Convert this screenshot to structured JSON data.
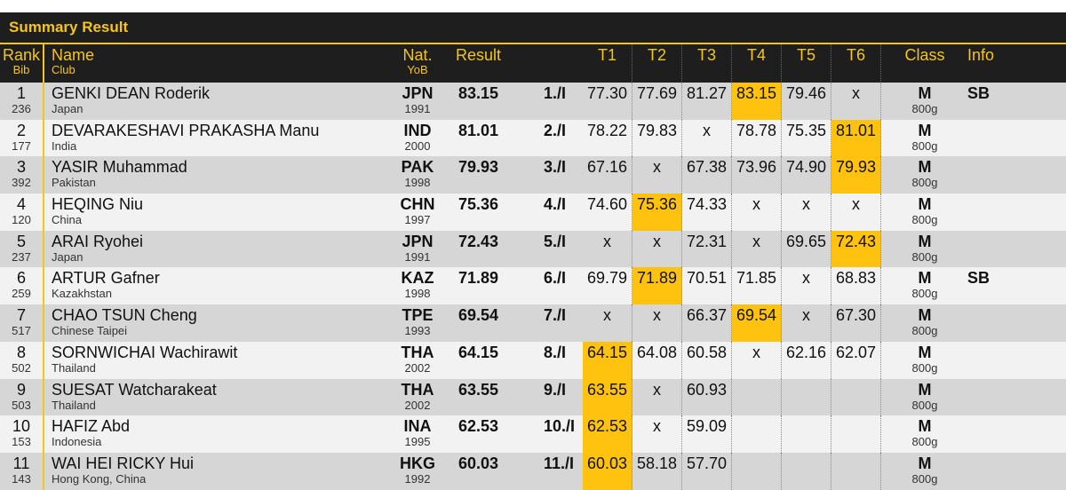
{
  "title": "Summary Result",
  "headers": {
    "rank": "Rank",
    "bib": "Bib",
    "name": "Name",
    "club": "Club",
    "nat": "Nat.",
    "yob": "YoB",
    "result": "Result",
    "trials": [
      "T1",
      "T2",
      "T3",
      "T4",
      "T5",
      "T6"
    ],
    "class": "Class",
    "info": "Info"
  },
  "highlight_color": "#ffc20e",
  "accent_color": "#f5c518",
  "rows": [
    {
      "rank": "1",
      "bib": "236",
      "name": "GENKI DEAN Roderik",
      "club": "Japan",
      "nat": "JPN",
      "yob": "1991",
      "result": "83.15",
      "pos": "1./I",
      "trials": [
        "77.30",
        "77.69",
        "81.27",
        "83.15",
        "79.46",
        "x"
      ],
      "best": 3,
      "class": "M",
      "weight": "800g",
      "info": "SB"
    },
    {
      "rank": "2",
      "bib": "177",
      "name": "DEVARAKESHAVI PRAKASHA Manu",
      "club": "India",
      "nat": "IND",
      "yob": "2000",
      "result": "81.01",
      "pos": "2./I",
      "trials": [
        "78.22",
        "79.83",
        "x",
        "78.78",
        "75.35",
        "81.01"
      ],
      "best": 5,
      "class": "M",
      "weight": "800g",
      "info": ""
    },
    {
      "rank": "3",
      "bib": "392",
      "name": "YASIR Muhammad",
      "club": "Pakistan",
      "nat": "PAK",
      "yob": "1998",
      "result": "79.93",
      "pos": "3./I",
      "trials": [
        "67.16",
        "x",
        "67.38",
        "73.96",
        "74.90",
        "79.93"
      ],
      "best": 5,
      "class": "M",
      "weight": "800g",
      "info": ""
    },
    {
      "rank": "4",
      "bib": "120",
      "name": "HEQING Niu",
      "club": "China",
      "nat": "CHN",
      "yob": "1997",
      "result": "75.36",
      "pos": "4./I",
      "trials": [
        "74.60",
        "75.36",
        "74.33",
        "x",
        "x",
        "x"
      ],
      "best": 1,
      "class": "M",
      "weight": "800g",
      "info": ""
    },
    {
      "rank": "5",
      "bib": "237",
      "name": "ARAI Ryohei",
      "club": "Japan",
      "nat": "JPN",
      "yob": "1991",
      "result": "72.43",
      "pos": "5./I",
      "trials": [
        "x",
        "x",
        "72.31",
        "x",
        "69.65",
        "72.43"
      ],
      "best": 5,
      "class": "M",
      "weight": "800g",
      "info": ""
    },
    {
      "rank": "6",
      "bib": "259",
      "name": "ARTUR Gafner",
      "club": "Kazakhstan",
      "nat": "KAZ",
      "yob": "1998",
      "result": "71.89",
      "pos": "6./I",
      "trials": [
        "69.79",
        "71.89",
        "70.51",
        "71.85",
        "x",
        "68.83"
      ],
      "best": 1,
      "class": "M",
      "weight": "800g",
      "info": "SB"
    },
    {
      "rank": "7",
      "bib": "517",
      "name": "CHAO TSUN Cheng",
      "club": "Chinese Taipei",
      "nat": "TPE",
      "yob": "1993",
      "result": "69.54",
      "pos": "7./I",
      "trials": [
        "x",
        "x",
        "66.37",
        "69.54",
        "x",
        "67.30"
      ],
      "best": 3,
      "class": "M",
      "weight": "800g",
      "info": ""
    },
    {
      "rank": "8",
      "bib": "502",
      "name": "SORNWICHAI Wachirawit",
      "club": "Thailand",
      "nat": "THA",
      "yob": "2002",
      "result": "64.15",
      "pos": "8./I",
      "trials": [
        "64.15",
        "64.08",
        "60.58",
        "x",
        "62.16",
        "62.07"
      ],
      "best": 0,
      "class": "M",
      "weight": "800g",
      "info": ""
    },
    {
      "rank": "9",
      "bib": "503",
      "name": "SUESAT Watcharakeat",
      "club": "Thailand",
      "nat": "THA",
      "yob": "2002",
      "result": "63.55",
      "pos": "9./I",
      "trials": [
        "63.55",
        "x",
        "60.93",
        "",
        "",
        ""
      ],
      "best": 0,
      "class": "M",
      "weight": "800g",
      "info": ""
    },
    {
      "rank": "10",
      "bib": "153",
      "name": "HAFIZ Abd",
      "club": "Indonesia",
      "nat": "INA",
      "yob": "1995",
      "result": "62.53",
      "pos": "10./I",
      "trials": [
        "62.53",
        "x",
        "59.09",
        "",
        "",
        ""
      ],
      "best": 0,
      "class": "M",
      "weight": "800g",
      "info": ""
    },
    {
      "rank": "11",
      "bib": "143",
      "name": "WAI HEI RICKY Hui",
      "club": "Hong Kong, China",
      "nat": "HKG",
      "yob": "1992",
      "result": "60.03",
      "pos": "11./I",
      "trials": [
        "60.03",
        "58.18",
        "57.70",
        "",
        "",
        ""
      ],
      "best": 0,
      "class": "M",
      "weight": "800g",
      "info": ""
    }
  ]
}
